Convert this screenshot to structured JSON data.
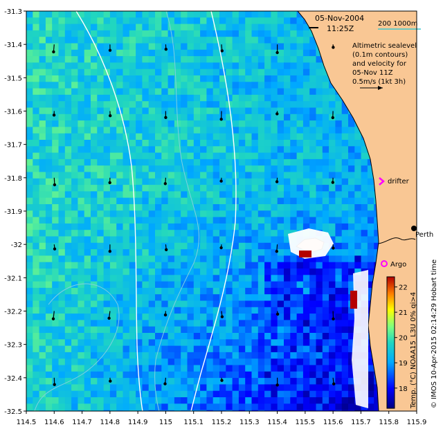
{
  "map": {
    "date": "05-Nov-2004",
    "time": "11:25Z",
    "scale_legend": "200  1000m",
    "sealevel_note": [
      "Altimetric sealevel",
      "(0.1m contours)",
      "and velocity for",
      "05-Nov 11Z",
      "0.5m/s (1kt 3h)"
    ],
    "drifter_label": "drifter",
    "argo_label": "Argo",
    "place_label": "Perth",
    "colorbar_title": "Temp. (°C) NOAA15_L3U 0% qi>4",
    "credit": "© IMOS 10-Apr-2015 02:14:29 Hobart time",
    "colors": {
      "land": "#f9c794",
      "cloud": "#ffffff",
      "isobath": "#7fd0e0",
      "scale_bar": "#3cc8d0",
      "drifter": "#ff00ff",
      "argo": "#ff00ff"
    }
  },
  "chart_data": {
    "type": "heatmap",
    "xlim": [
      114.5,
      115.9
    ],
    "ylim": [
      -32.5,
      -31.3
    ],
    "x_ticks": [
      "114.5",
      "114.6",
      "114.7",
      "114.8",
      "114.9",
      "115",
      "115.1",
      "115.2",
      "115.3",
      "115.4",
      "115.5",
      "115.6",
      "115.7",
      "115.8",
      "115.9"
    ],
    "y_ticks": [
      "-31.3",
      "-31.4",
      "-31.5",
      "-31.6",
      "-31.7",
      "-31.8",
      "-31.9",
      "-32",
      "-32.1",
      "-32.2",
      "-32.3",
      "-32.4",
      "-32.5"
    ],
    "colorbar": {
      "range": [
        17.2,
        22.4
      ],
      "ticks": [
        "18",
        "19",
        "20",
        "21",
        "22"
      ],
      "label": "Temp. (°C) NOAA15_L3U 0% qi>4"
    },
    "temperature_field_description_c": {
      "offshore_west": 19.7,
      "mid_shelf": 19.3,
      "southeast_inshore": 17.9,
      "nearshore_warm_spot": 22.0
    }
  }
}
